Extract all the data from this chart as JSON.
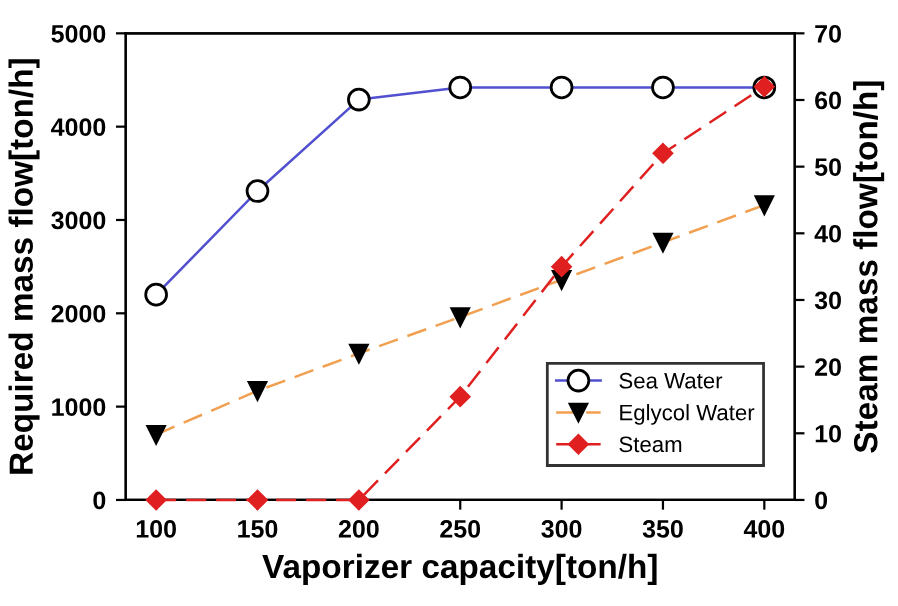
{
  "chart_data": {
    "type": "line",
    "xlabel": "Vaporizer capacity[ton/h]",
    "ylabel": "Required mass flow[ton/h]",
    "y2label": "Steam mass flow[ton/h]",
    "x": [
      100,
      150,
      200,
      250,
      300,
      350,
      400
    ],
    "series": [
      {
        "name": "Sea Water",
        "color": "#5050d0",
        "marker": "circle",
        "line_style": "solid",
        "values": [
          2200,
          3310,
          4290,
          4420,
          4420,
          4420,
          4420
        ]
      },
      {
        "name": "Eglycol Water",
        "color": "#f0a050",
        "marker": "triangle",
        "line_style": "dashed",
        "values": [
          700,
          1170,
          1570,
          1960,
          2360,
          2760,
          3160
        ]
      },
      {
        "name": "Steam",
        "color": "#e02020",
        "marker": "diamond",
        "line_style": "dashed",
        "axis": "y2",
        "values": [
          0,
          0,
          0,
          15.5,
          35,
          52,
          62
        ]
      }
    ],
    "xlim": [
      85,
      415
    ],
    "xticks": [
      100,
      150,
      200,
      250,
      300,
      350,
      400
    ],
    "ylim": [
      0,
      5000
    ],
    "yticks": [
      0,
      1000,
      2000,
      3000,
      4000,
      5000
    ],
    "y2lim": [
      0,
      70
    ],
    "y2ticks": [
      0,
      10,
      20,
      30,
      40,
      50,
      60,
      70
    ],
    "legend": "bottom right",
    "grid": false
  }
}
